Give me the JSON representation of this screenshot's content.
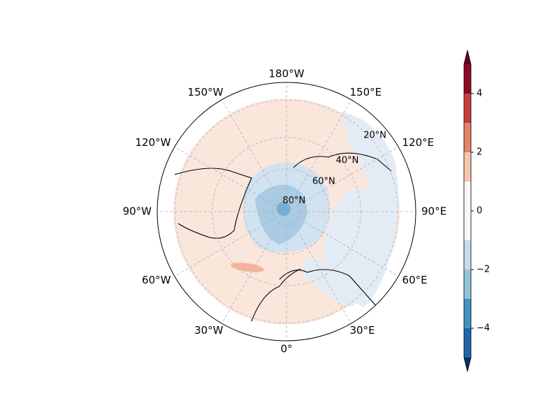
{
  "map": {
    "lon_labels": [
      "0°",
      "30°E",
      "60°E",
      "90°E",
      "120°E",
      "150°E",
      "180°W",
      "150°W",
      "120°W",
      "90°W",
      "60°W",
      "30°W"
    ],
    "lat_labels": [
      "80°N",
      "60°N",
      "40°N",
      "20°N"
    ],
    "colorbar": {
      "levels": [
        -5,
        -4,
        -3,
        -2,
        -1,
        1,
        2,
        3,
        4,
        5
      ],
      "colors": [
        "#2166ac",
        "#4393c3",
        "#92c5de",
        "#c6dbef",
        "#f7f7f7",
        "#f9c6ac",
        "#e58267",
        "#c53e3d",
        "#8b0a26"
      ],
      "extend_colors": [
        "#053061",
        "#67001f"
      ],
      "ticks": [
        {
          "value": -4,
          "label": "−4"
        },
        {
          "value": -2,
          "label": "−2"
        },
        0,
        2,
        4
      ]
    }
  }
}
